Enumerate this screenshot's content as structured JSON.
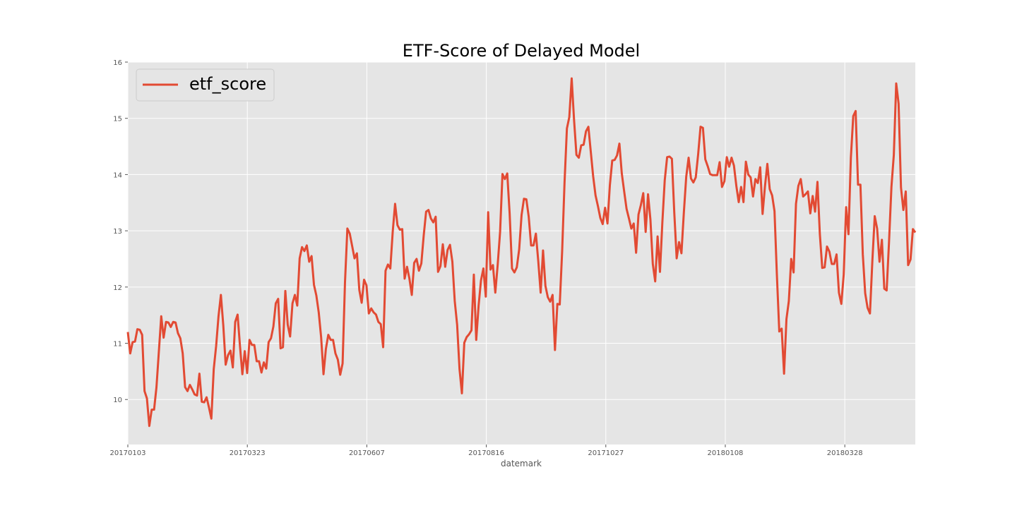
{
  "chart_data": {
    "type": "line",
    "title": "ETF-Score of Delayed Model",
    "xlabel": "datemark",
    "ylabel": "",
    "ylim": [
      9.2,
      16.0
    ],
    "yticks": [
      10,
      11,
      12,
      13,
      14,
      15,
      16
    ],
    "xtick_labels": [
      "20170103",
      "20170323",
      "20170607",
      "20170816",
      "20171027",
      "20180108",
      "20180328"
    ],
    "grid": true,
    "legend_position": "top-left",
    "colors": {
      "line": "#e24a33",
      "plot_bg": "#e5e5e5",
      "grid": "#ffffff"
    },
    "series": [
      {
        "name": "etf_score",
        "values": [
          11.2,
          10.82,
          11.02,
          11.03,
          11.25,
          11.24,
          11.15,
          10.15,
          10.02,
          9.53,
          9.82,
          9.82,
          10.22,
          10.85,
          11.48,
          11.1,
          11.38,
          11.37,
          11.29,
          11.38,
          11.37,
          11.18,
          11.09,
          10.82,
          10.22,
          10.15,
          10.26,
          10.18,
          10.09,
          10.07,
          10.46,
          9.96,
          9.95,
          10.04,
          9.86,
          9.66,
          10.54,
          10.95,
          11.48,
          11.86,
          11.32,
          10.62,
          10.79,
          10.87,
          10.57,
          11.38,
          11.51,
          10.95,
          10.45,
          10.86,
          10.47,
          11.06,
          10.97,
          10.97,
          10.68,
          10.68,
          10.48,
          10.66,
          10.55,
          11.02,
          11.09,
          11.3,
          11.71,
          11.79,
          10.91,
          10.93,
          11.93,
          11.33,
          11.12,
          11.71,
          11.86,
          11.67,
          12.51,
          12.71,
          12.64,
          12.74,
          12.45,
          12.55,
          12.04,
          11.85,
          11.55,
          11.11,
          10.45,
          10.9,
          11.15,
          11.06,
          11.06,
          10.82,
          10.71,
          10.44,
          10.64,
          12.08,
          13.04,
          12.95,
          12.73,
          12.51,
          12.6,
          11.95,
          11.72,
          12.13,
          12.03,
          11.53,
          11.62,
          11.55,
          11.51,
          11.38,
          11.34,
          10.93,
          12.29,
          12.4,
          12.33,
          12.98,
          13.48,
          13.1,
          13.02,
          13.03,
          12.15,
          12.36,
          12.15,
          11.86,
          12.43,
          12.5,
          12.29,
          12.42,
          12.92,
          13.34,
          13.37,
          13.22,
          13.15,
          13.25,
          12.27,
          12.37,
          12.76,
          12.36,
          12.66,
          12.75,
          12.45,
          11.75,
          11.33,
          10.54,
          10.11,
          11.01,
          11.11,
          11.16,
          11.23,
          12.22,
          11.06,
          11.67,
          12.12,
          12.33,
          11.83,
          13.33,
          12.31,
          12.39,
          11.9,
          12.4,
          12.98,
          14.01,
          13.92,
          14.02,
          13.31,
          12.33,
          12.26,
          12.35,
          12.67,
          13.28,
          13.57,
          13.56,
          13.25,
          12.74,
          12.74,
          12.95,
          12.46,
          11.9,
          12.65,
          12.02,
          11.82,
          11.74,
          11.86,
          10.88,
          11.7,
          11.69,
          12.63,
          13.85,
          14.82,
          15.02,
          15.71,
          14.97,
          14.35,
          14.3,
          14.52,
          14.53,
          14.77,
          14.85,
          14.41,
          13.97,
          13.63,
          13.44,
          13.23,
          13.12,
          13.41,
          13.13,
          13.81,
          14.25,
          14.26,
          14.34,
          14.55,
          14.02,
          13.7,
          13.39,
          13.22,
          13.04,
          13.13,
          12.61,
          13.29,
          13.46,
          13.67,
          12.98,
          13.65,
          13.2,
          12.41,
          12.1,
          12.9,
          12.27,
          13.15,
          13.9,
          14.31,
          14.32,
          14.28,
          13.32,
          12.51,
          12.8,
          12.6,
          13.32,
          13.96,
          14.3,
          13.93,
          13.86,
          13.95,
          14.36,
          14.85,
          14.83,
          14.27,
          14.15,
          14.01,
          13.99,
          13.99,
          13.99,
          14.22,
          13.78,
          13.88,
          14.31,
          14.14,
          14.3,
          14.16,
          13.8,
          13.51,
          13.78,
          13.51,
          14.23,
          14.0,
          13.95,
          13.61,
          13.92,
          13.85,
          14.13,
          13.3,
          13.79,
          14.19,
          13.74,
          13.63,
          13.35,
          12.21,
          11.21,
          11.26,
          10.46,
          11.43,
          11.75,
          12.5,
          12.26,
          13.48,
          13.8,
          13.92,
          13.61,
          13.65,
          13.7,
          13.31,
          13.62,
          13.34,
          13.87,
          12.94,
          12.34,
          12.35,
          12.72,
          12.63,
          12.41,
          12.41,
          12.58,
          11.9,
          11.7,
          12.22,
          13.42,
          12.94,
          14.3,
          15.04,
          15.13,
          13.82,
          13.82,
          12.58,
          11.89,
          11.63,
          11.53,
          12.46,
          13.26,
          13.04,
          12.45,
          12.84,
          11.97,
          11.94,
          12.81,
          13.78,
          14.35,
          15.62,
          15.26,
          13.77,
          13.37,
          13.7,
          12.39,
          12.49,
          13.03,
          12.97
        ]
      }
    ]
  }
}
